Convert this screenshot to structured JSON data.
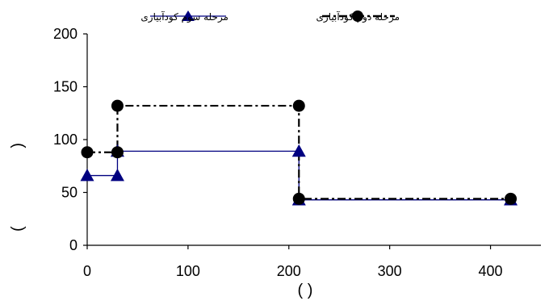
{
  "chart_data": {
    "type": "line",
    "title": "",
    "xlabel": "(  )",
    "ylabel": "(  )",
    "xlim": [
      0,
      450
    ],
    "ylim": [
      0,
      200
    ],
    "x_ticks": [
      0,
      100,
      200,
      300,
      400
    ],
    "y_ticks": [
      0,
      50,
      100,
      150,
      200
    ],
    "grid": false,
    "legend_position": "top",
    "series": [
      {
        "name": "مرحله سوم كودآبياری",
        "color": "#000080",
        "line_style": "solid",
        "marker": "triangle",
        "points": [
          [
            0,
            66
          ],
          [
            30,
            66
          ],
          [
            30,
            89
          ],
          [
            210,
            89
          ],
          [
            210,
            43
          ],
          [
            420,
            43
          ]
        ]
      },
      {
        "name": "مرحله دوم  كودآبياری",
        "color": "#000000",
        "line_style": "dash-dot",
        "marker": "circle",
        "points": [
          [
            0,
            88
          ],
          [
            30,
            88
          ],
          [
            30,
            132
          ],
          [
            210,
            132
          ],
          [
            210,
            44
          ],
          [
            420,
            44
          ]
        ]
      }
    ]
  }
}
